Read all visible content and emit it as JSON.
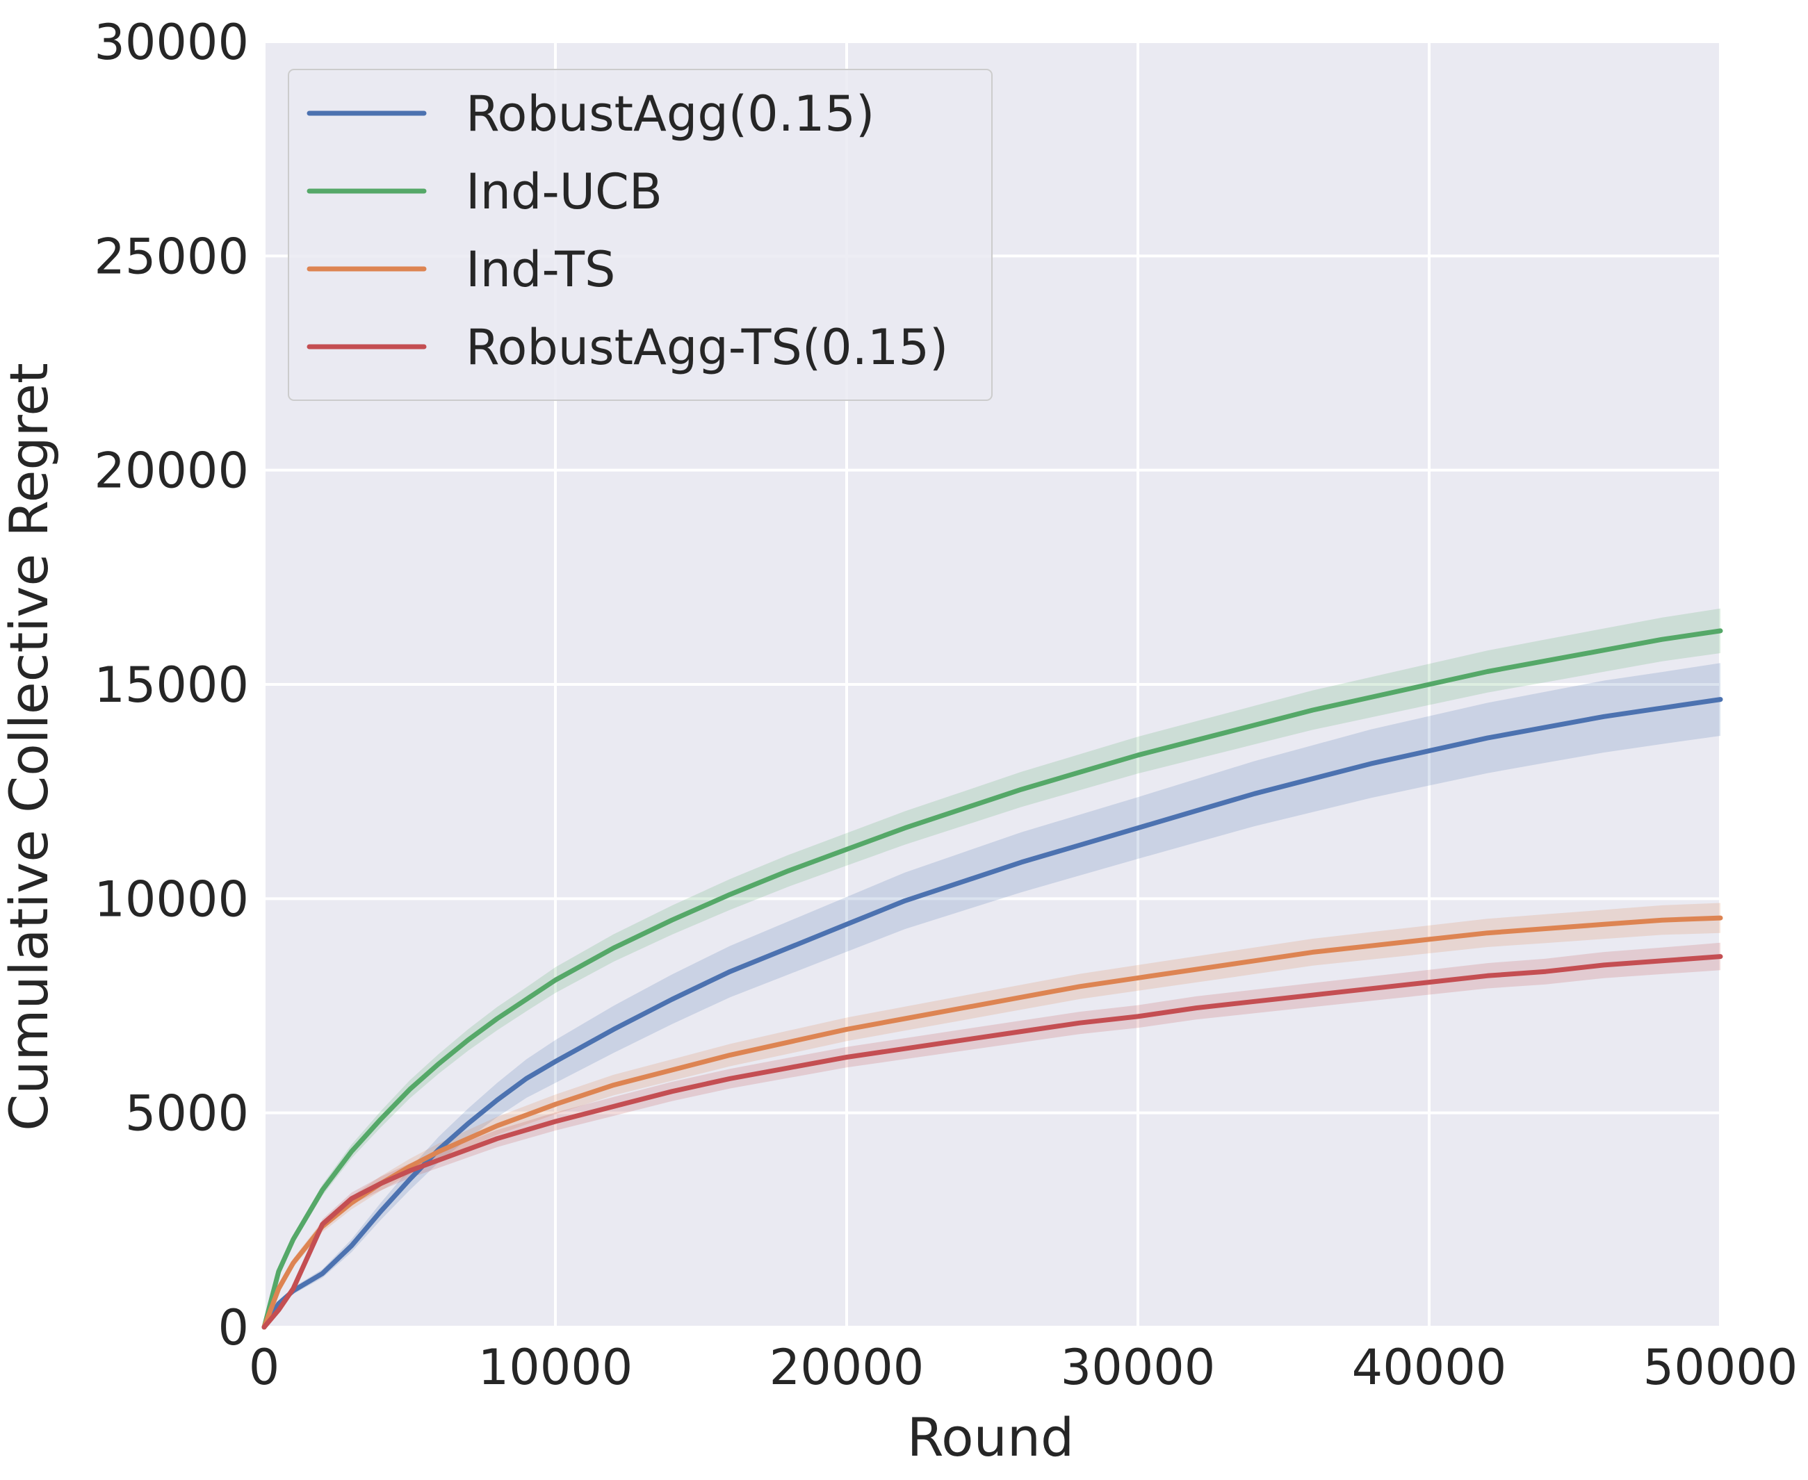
{
  "chart_data": {
    "type": "line",
    "title": "",
    "xlabel": "Round",
    "ylabel": "Cumulative Collective Regret",
    "xlim": [
      0,
      50000
    ],
    "ylim": [
      0,
      30000
    ],
    "xticks": [
      0,
      10000,
      20000,
      30000,
      40000,
      50000
    ],
    "yticks": [
      0,
      5000,
      10000,
      15000,
      20000,
      25000,
      30000
    ],
    "grid": true,
    "background": "#eaeaf2",
    "legend_position": "top-left",
    "x": [
      0,
      500,
      1000,
      2000,
      3000,
      4000,
      5000,
      6000,
      7000,
      8000,
      9000,
      10000,
      12000,
      14000,
      16000,
      18000,
      20000,
      22000,
      24000,
      26000,
      28000,
      30000,
      32000,
      34000,
      36000,
      38000,
      40000,
      42000,
      44000,
      46000,
      48000,
      50000
    ],
    "series": [
      {
        "name": "RobustAgg(0.15)",
        "color": "#4c72b0",
        "values": [
          0,
          550,
          850,
          1250,
          1900,
          2700,
          3450,
          4150,
          4750,
          5300,
          5800,
          6200,
          6950,
          7650,
          8300,
          8850,
          9400,
          9950,
          10400,
          10850,
          11250,
          11650,
          12050,
          12450,
          12800,
          13150,
          13450,
          13750,
          14000,
          14250,
          14450,
          14650
        ],
        "band": [
          0,
          60,
          80,
          100,
          150,
          200,
          250,
          300,
          350,
          400,
          450,
          500,
          550,
          580,
          600,
          620,
          640,
          660,
          680,
          700,
          710,
          720,
          740,
          760,
          780,
          800,
          810,
          820,
          830,
          840,
          840,
          850
        ]
      },
      {
        "name": "Ind-UCB",
        "color": "#55a868",
        "values": [
          0,
          1300,
          2050,
          3200,
          4100,
          4850,
          5550,
          6150,
          6700,
          7200,
          7650,
          8100,
          8850,
          9500,
          10100,
          10650,
          11150,
          11650,
          12100,
          12550,
          12950,
          13350,
          13700,
          14050,
          14400,
          14700,
          15000,
          15300,
          15550,
          15800,
          16050,
          16250
        ],
        "band": [
          0,
          80,
          100,
          130,
          160,
          190,
          210,
          230,
          250,
          270,
          280,
          300,
          320,
          340,
          360,
          370,
          380,
          390,
          400,
          410,
          420,
          430,
          440,
          450,
          460,
          470,
          480,
          490,
          500,
          505,
          510,
          520
        ]
      },
      {
        "name": "Ind-TS",
        "color": "#dd8452",
        "values": [
          0,
          900,
          1500,
          2350,
          2900,
          3350,
          3750,
          4100,
          4400,
          4700,
          4950,
          5200,
          5650,
          6000,
          6350,
          6650,
          6950,
          7200,
          7450,
          7700,
          7950,
          8150,
          8350,
          8550,
          8750,
          8900,
          9050,
          9200,
          9300,
          9400,
          9500,
          9550
        ],
        "band": [
          0,
          80,
          100,
          130,
          150,
          170,
          180,
          190,
          200,
          210,
          220,
          230,
          240,
          250,
          260,
          270,
          275,
          280,
          285,
          290,
          295,
          300,
          305,
          310,
          315,
          320,
          325,
          330,
          335,
          340,
          345,
          350
        ]
      },
      {
        "name": "RobustAgg-TS(0.15)",
        "color": "#c44e52",
        "values": [
          0,
          400,
          900,
          2400,
          3000,
          3350,
          3650,
          3900,
          4150,
          4400,
          4600,
          4800,
          5150,
          5500,
          5800,
          6050,
          6300,
          6500,
          6700,
          6900,
          7100,
          7250,
          7450,
          7600,
          7750,
          7900,
          8050,
          8200,
          8300,
          8450,
          8550,
          8650
        ],
        "band": [
          0,
          60,
          80,
          120,
          140,
          160,
          170,
          180,
          190,
          200,
          205,
          210,
          220,
          225,
          230,
          235,
          240,
          245,
          250,
          255,
          260,
          265,
          270,
          275,
          280,
          285,
          290,
          295,
          300,
          305,
          310,
          320
        ]
      }
    ]
  }
}
